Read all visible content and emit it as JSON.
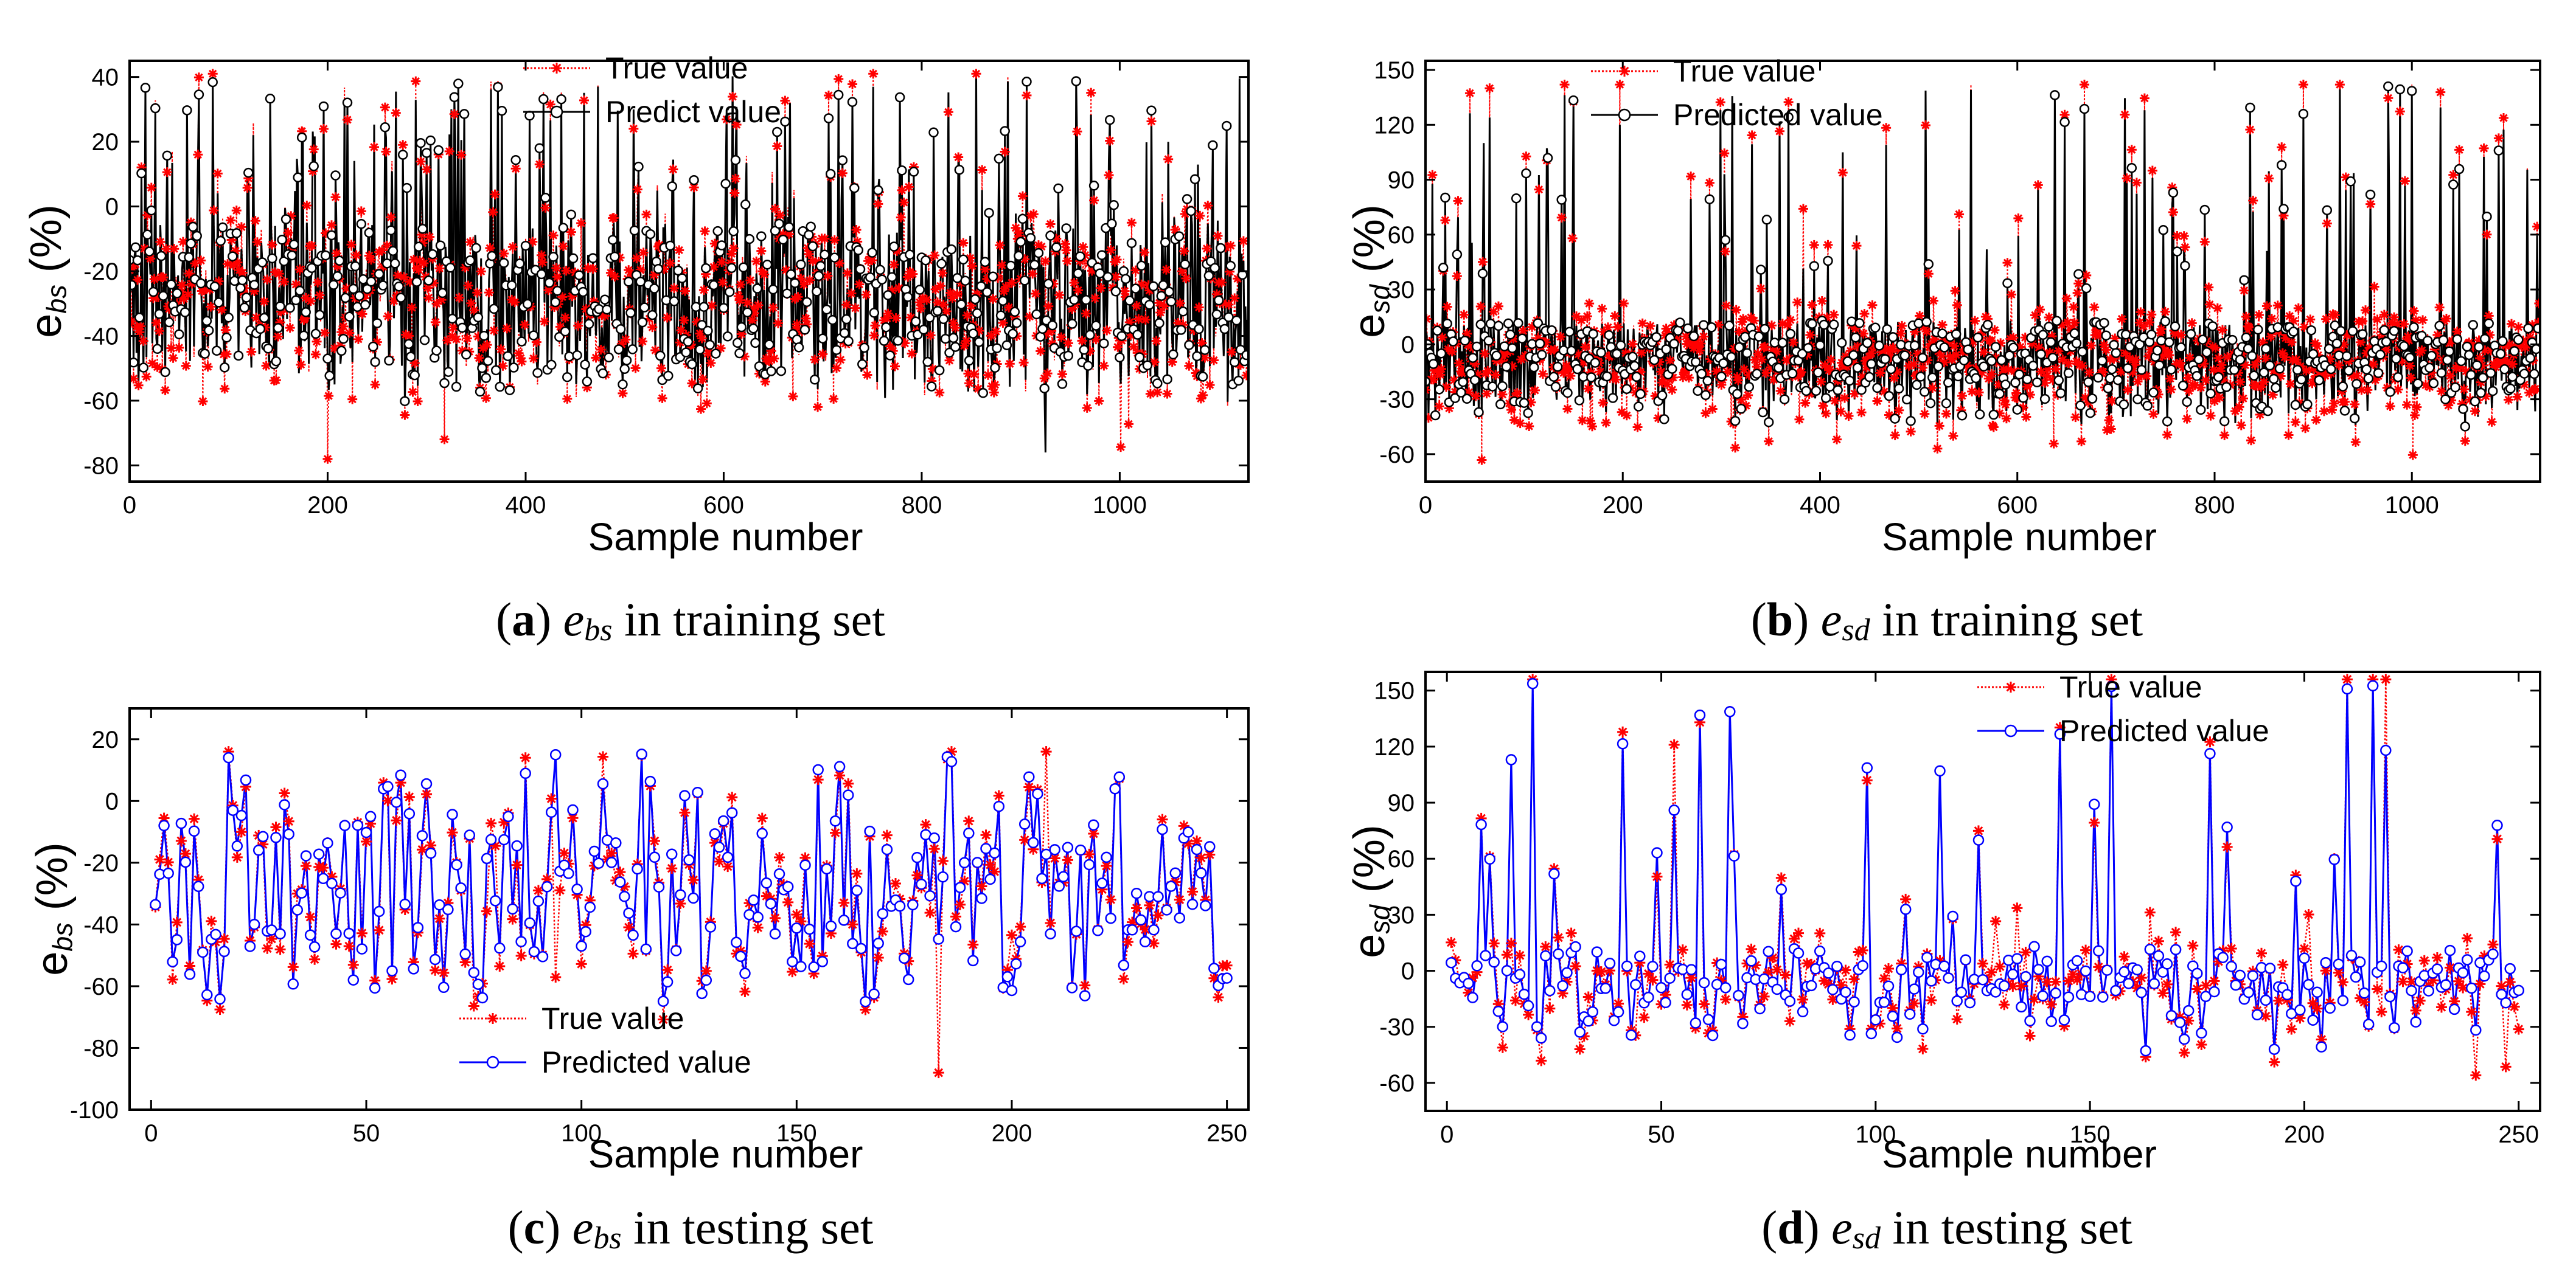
{
  "chart_data": [
    {
      "id": "a",
      "type": "line",
      "title": "",
      "caption": {
        "letter": "a",
        "var_main": "e",
        "var_sub": "bs",
        "text": "in training set"
      },
      "ylabel": {
        "main": "e",
        "sub": "bs",
        "unit": "(%)"
      },
      "xlabel": "Sample number",
      "xlim": [
        0,
        1130
      ],
      "ylim": [
        -85,
        45
      ],
      "xticks": [
        0,
        200,
        400,
        600,
        800,
        1000
      ],
      "yticks": [
        -80,
        -60,
        -40,
        -20,
        0,
        20,
        40
      ],
      "n_points": 1130,
      "value_range": [
        -78,
        41
      ],
      "value_mean": -30,
      "series": [
        {
          "name": "True value",
          "color": "#ff0000",
          "style": "dotted",
          "marker": "star"
        },
        {
          "name": "Predict value",
          "color": "#000000",
          "style": "solid",
          "marker": "circle"
        }
      ],
      "annotations": [
        "peak ≈ 41 near sample 855",
        "min ≈ -78 near sample 200"
      ]
    },
    {
      "id": "b",
      "type": "line",
      "title": "",
      "caption": {
        "letter": "b",
        "var_main": "e",
        "var_sub": "sd",
        "text": "in training set"
      },
      "ylabel": {
        "main": "e",
        "sub": "sd",
        "unit": "(%)"
      },
      "xlabel": "Sample number",
      "xlim": [
        0,
        1130
      ],
      "ylim": [
        -75,
        155
      ],
      "xticks": [
        0,
        200,
        400,
        600,
        800,
        1000
      ],
      "yticks": [
        -60,
        -30,
        0,
        30,
        60,
        90,
        120,
        150
      ],
      "n_points": 1130,
      "value_range": [
        -65,
        142
      ],
      "value_mean": -12,
      "series": [
        {
          "name": "True value",
          "color": "#ff0000",
          "style": "dotted",
          "marker": "star"
        },
        {
          "name": "Predicted value",
          "color": "#000000",
          "style": "solid",
          "marker": "circle"
        }
      ],
      "annotations": [
        "peak ≈ 142 near sample 890",
        "peak ≈ 140 near sample 65"
      ]
    },
    {
      "id": "c",
      "type": "line",
      "title": "",
      "caption": {
        "letter": "c",
        "var_main": "e",
        "var_sub": "bs",
        "text": "in testing set"
      },
      "ylabel": {
        "main": "e",
        "sub": "bs",
        "unit": "(%)"
      },
      "xlabel": "Sample number",
      "xlim": [
        -5,
        255
      ],
      "ylim": [
        -100,
        30
      ],
      "xticks": [
        0,
        50,
        100,
        150,
        200,
        250
      ],
      "yticks": [
        -100,
        -80,
        -60,
        -40,
        -20,
        0,
        20
      ],
      "n_points": 250,
      "value_range": [
        -88,
        16
      ],
      "value_mean": -28,
      "series": [
        {
          "name": "True value",
          "color": "#ff0000",
          "style": "dotted",
          "marker": "star"
        },
        {
          "name": "Predicted value",
          "color": "#0000ff",
          "style": "solid",
          "marker": "circle"
        }
      ],
      "annotations": [
        "min ≈ -88 near sample 182"
      ]
    },
    {
      "id": "d",
      "type": "line",
      "title": "",
      "caption": {
        "letter": "d",
        "var_main": "e",
        "var_sub": "sd",
        "text": "in testing set"
      },
      "ylabel": {
        "main": "e",
        "sub": "sd",
        "unit": "(%)"
      },
      "xlabel": "Sample number",
      "xlim": [
        -5,
        255
      ],
      "ylim": [
        -75,
        160
      ],
      "xticks": [
        0,
        50,
        100,
        150,
        200,
        250
      ],
      "yticks": [
        -60,
        -30,
        0,
        30,
        60,
        90,
        120,
        150
      ],
      "n_points": 250,
      "value_range": [
        -62,
        156
      ],
      "value_mean": -12,
      "series": [
        {
          "name": "True value",
          "color": "#ff0000",
          "style": "dotted",
          "marker": "star"
        },
        {
          "name": "Predicted value",
          "color": "#0000ff",
          "style": "solid",
          "marker": "circle"
        }
      ],
      "annotations": [
        "peak ≈ 156 near sample 218",
        "peak ≈ 118 near sample 52"
      ]
    }
  ]
}
